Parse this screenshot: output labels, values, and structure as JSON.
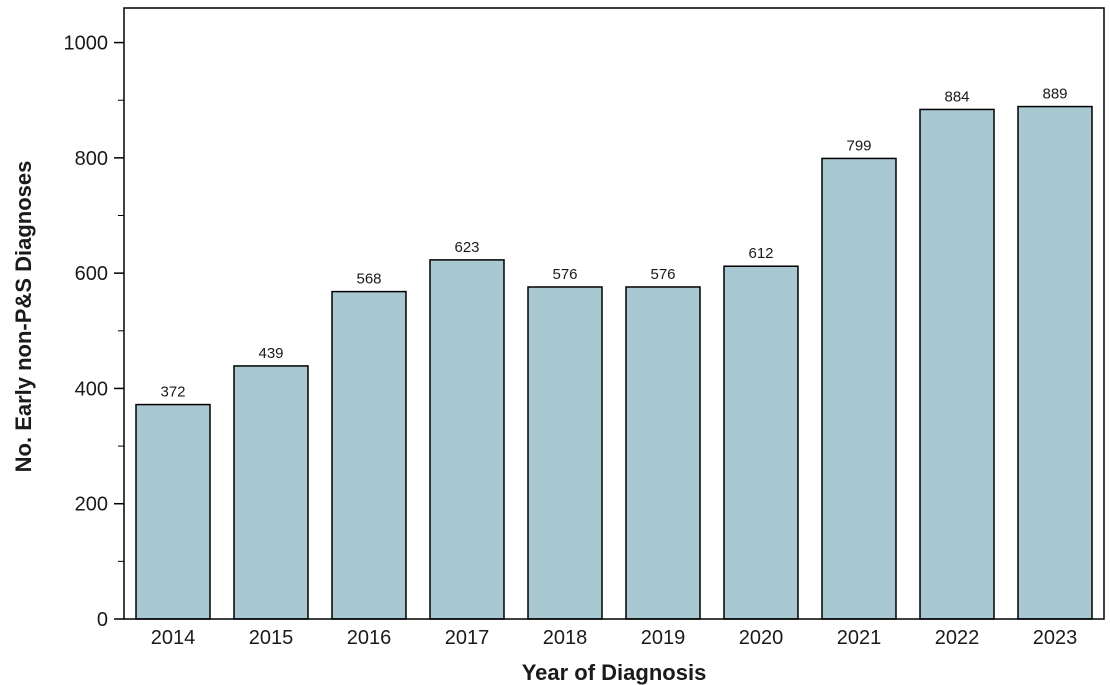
{
  "chart_data": {
    "type": "bar",
    "categories": [
      "2014",
      "2015",
      "2016",
      "2017",
      "2018",
      "2019",
      "2020",
      "2021",
      "2022",
      "2023"
    ],
    "values": [
      372,
      439,
      568,
      623,
      576,
      576,
      612,
      799,
      884,
      889
    ],
    "data_labels": [
      "372",
      "439",
      "568",
      "623",
      "576",
      "576",
      "612",
      "799",
      "884",
      "889"
    ],
    "xlabel": "Year of Diagnosis",
    "ylabel": "No. Early non-P&S Diagnoses",
    "ylim": [
      0,
      1060
    ],
    "yticks": [
      0,
      200,
      400,
      600,
      800,
      1000
    ],
    "ytick_labels": [
      "0",
      "200",
      "400",
      "600",
      "800",
      "1000"
    ],
    "grid": false,
    "colors": {
      "bar_fill": "#a8c8d2",
      "bar_stroke": "#000000",
      "axis": "#000000"
    }
  }
}
